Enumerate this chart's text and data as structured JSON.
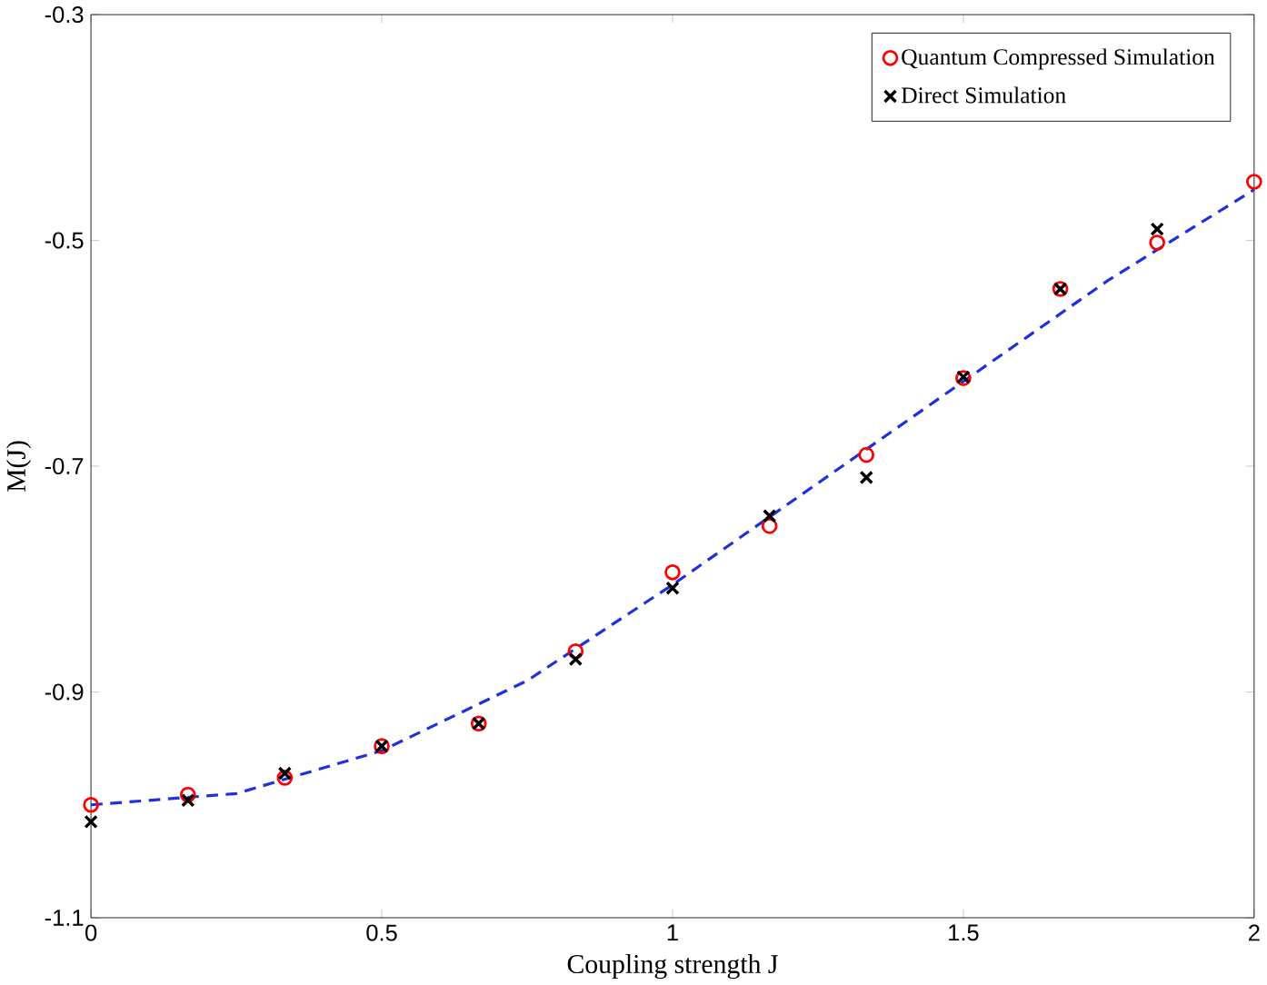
{
  "chart_data": {
    "type": "scatter",
    "xlabel": "Coupling strength J",
    "ylabel": "M(J)",
    "xlim": [
      0,
      2
    ],
    "ylim": [
      -1.1,
      -0.3
    ],
    "xticks": [
      0,
      0.5,
      1,
      1.5,
      2
    ],
    "yticks": [
      -1.1,
      -0.9,
      -0.7,
      -0.5,
      -0.3
    ],
    "legend": "top right",
    "grid": false,
    "series": [
      {
        "name": "Quantum Compressed Simulation",
        "marker": "circle",
        "color": "#ff0000",
        "x": [
          0,
          0.1667,
          0.3333,
          0.5,
          0.6667,
          0.8333,
          1,
          1.1667,
          1.3333,
          1.5,
          1.6667,
          1.8333,
          2
        ],
        "values": [
          -1.0,
          -0.991,
          -0.976,
          -0.948,
          -0.928,
          -0.864,
          -0.794,
          -0.753,
          -0.69,
          -0.622,
          -0.543,
          -0.502,
          -0.448
        ]
      },
      {
        "name": "Direct   Simulation",
        "marker": "cross",
        "color": "#000000",
        "x": [
          0,
          0.1667,
          0.3333,
          0.5,
          0.6667,
          0.8333,
          1,
          1.1667,
          1.3333,
          1.5,
          1.6667,
          1.8333
        ],
        "values": [
          -1.015,
          -0.996,
          -0.972,
          -0.948,
          -0.928,
          -0.871,
          -0.808,
          -0.744,
          -0.71,
          -0.621,
          -0.543,
          -0.49
        ]
      },
      {
        "type": "line",
        "marker": "none",
        "line_style": "dashed",
        "color": "#1f2fe0",
        "x": [
          0,
          0.25,
          0.5,
          0.75,
          1,
          1.25,
          1.5,
          1.75,
          2
        ],
        "values": [
          -1.0,
          -0.99,
          -0.952,
          -0.89,
          -0.805,
          -0.715,
          -0.625,
          -0.535,
          -0.455
        ]
      }
    ]
  }
}
